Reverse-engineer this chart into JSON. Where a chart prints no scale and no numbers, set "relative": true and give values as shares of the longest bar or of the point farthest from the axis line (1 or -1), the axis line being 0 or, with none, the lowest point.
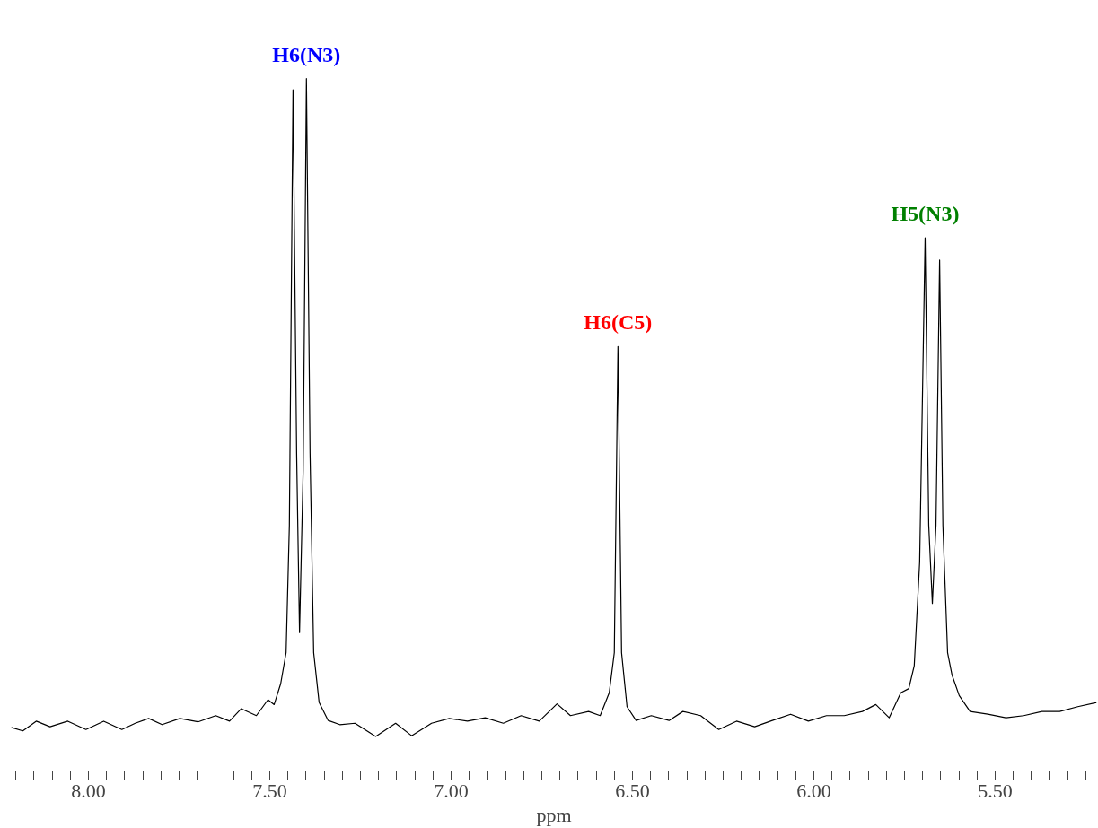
{
  "chart_data": {
    "type": "line",
    "relative": true,
    "xlabel": "ppm",
    "grid": false,
    "marker": "none",
    "line_style": "solid",
    "xlim": [
      8.213,
      5.22
    ],
    "xticks": [
      {
        "value": 8.2,
        "label": null
      },
      {
        "value": 8.15,
        "label": null
      },
      {
        "value": 8.1,
        "label": null
      },
      {
        "value": 8.05,
        "label": null
      },
      {
        "value": 8.0,
        "label": "8.00"
      },
      {
        "value": 7.95,
        "label": null
      },
      {
        "value": 7.9,
        "label": null
      },
      {
        "value": 7.85,
        "label": null
      },
      {
        "value": 7.8,
        "label": null
      },
      {
        "value": 7.75,
        "label": null
      },
      {
        "value": 7.7,
        "label": null
      },
      {
        "value": 7.65,
        "label": null
      },
      {
        "value": 7.6,
        "label": null
      },
      {
        "value": 7.55,
        "label": null
      },
      {
        "value": 7.5,
        "label": "7.50"
      },
      {
        "value": 7.45,
        "label": null
      },
      {
        "value": 7.4,
        "label": null
      },
      {
        "value": 7.35,
        "label": null
      },
      {
        "value": 7.3,
        "label": null
      },
      {
        "value": 7.25,
        "label": null
      },
      {
        "value": 7.2,
        "label": null
      },
      {
        "value": 7.15,
        "label": null
      },
      {
        "value": 7.1,
        "label": null
      },
      {
        "value": 7.05,
        "label": null
      },
      {
        "value": 7.0,
        "label": "7.00"
      },
      {
        "value": 6.95,
        "label": null
      },
      {
        "value": 6.9,
        "label": null
      },
      {
        "value": 6.85,
        "label": null
      },
      {
        "value": 6.8,
        "label": null
      },
      {
        "value": 6.75,
        "label": null
      },
      {
        "value": 6.7,
        "label": null
      },
      {
        "value": 6.65,
        "label": null
      },
      {
        "value": 6.6,
        "label": null
      },
      {
        "value": 6.55,
        "label": null
      },
      {
        "value": 6.5,
        "label": "6.50"
      },
      {
        "value": 6.45,
        "label": null
      },
      {
        "value": 6.4,
        "label": null
      },
      {
        "value": 6.35,
        "label": null
      },
      {
        "value": 6.3,
        "label": null
      },
      {
        "value": 6.25,
        "label": null
      },
      {
        "value": 6.2,
        "label": null
      },
      {
        "value": 6.15,
        "label": null
      },
      {
        "value": 6.1,
        "label": null
      },
      {
        "value": 6.05,
        "label": null
      },
      {
        "value": 6.0,
        "label": "6.00"
      },
      {
        "value": 5.95,
        "label": null
      },
      {
        "value": 5.9,
        "label": null
      },
      {
        "value": 5.85,
        "label": null
      },
      {
        "value": 5.8,
        "label": null
      },
      {
        "value": 5.75,
        "label": null
      },
      {
        "value": 5.7,
        "label": null
      },
      {
        "value": 5.65,
        "label": null
      },
      {
        "value": 5.6,
        "label": null
      },
      {
        "value": 5.55,
        "label": null
      },
      {
        "value": 5.5,
        "label": "5.50"
      },
      {
        "value": 5.45,
        "label": null
      },
      {
        "value": 5.4,
        "label": null
      },
      {
        "value": 5.35,
        "label": null
      },
      {
        "value": 5.3,
        "label": null
      },
      {
        "value": 5.25,
        "label": null
      }
    ],
    "series": [
      {
        "color": "#000000",
        "x": [
          8.213,
          8.181,
          8.144,
          8.106,
          8.057,
          8.007,
          7.958,
          7.908,
          7.871,
          7.834,
          7.797,
          7.748,
          7.698,
          7.649,
          7.611,
          7.579,
          7.537,
          7.505,
          7.488,
          7.47,
          7.455,
          7.446,
          7.436,
          7.426,
          7.418,
          7.408,
          7.399,
          7.389,
          7.379,
          7.364,
          7.339,
          7.307,
          7.265,
          7.208,
          7.153,
          7.109,
          7.054,
          7.005,
          6.955,
          6.906,
          6.856,
          6.807,
          6.757,
          6.708,
          6.671,
          6.621,
          6.589,
          6.564,
          6.55,
          6.54,
          6.53,
          6.515,
          6.49,
          6.448,
          6.399,
          6.361,
          6.312,
          6.262,
          6.213,
          6.163,
          6.114,
          6.064,
          6.015,
          5.965,
          5.916,
          5.866,
          5.829,
          5.792,
          5.76,
          5.738,
          5.723,
          5.708,
          5.693,
          5.683,
          5.673,
          5.663,
          5.653,
          5.644,
          5.631,
          5.619,
          5.599,
          5.569,
          5.52,
          5.47,
          5.421,
          5.371,
          5.322,
          5.272,
          5.22
        ],
        "values": [
          0.063,
          0.058,
          0.072,
          0.064,
          0.072,
          0.06,
          0.072,
          0.06,
          0.069,
          0.076,
          0.067,
          0.076,
          0.071,
          0.08,
          0.072,
          0.09,
          0.08,
          0.103,
          0.096,
          0.126,
          0.171,
          0.355,
          0.984,
          0.459,
          0.2,
          0.433,
          1.0,
          0.459,
          0.171,
          0.099,
          0.073,
          0.067,
          0.069,
          0.05,
          0.069,
          0.051,
          0.069,
          0.076,
          0.072,
          0.077,
          0.069,
          0.08,
          0.072,
          0.097,
          0.08,
          0.086,
          0.08,
          0.113,
          0.171,
          0.613,
          0.171,
          0.093,
          0.073,
          0.08,
          0.073,
          0.086,
          0.08,
          0.06,
          0.072,
          0.064,
          0.073,
          0.082,
          0.072,
          0.08,
          0.08,
          0.086,
          0.096,
          0.077,
          0.113,
          0.119,
          0.152,
          0.302,
          0.77,
          0.355,
          0.242,
          0.355,
          0.738,
          0.355,
          0.171,
          0.139,
          0.109,
          0.086,
          0.082,
          0.077,
          0.08,
          0.086,
          0.086,
          0.093,
          0.099
        ]
      }
    ],
    "annotations": [
      {
        "text": "H6(N3)",
        "x": 7.399,
        "y": 1.0
      },
      {
        "text": "H6(C5)",
        "x": 6.54,
        "y": 0.613
      },
      {
        "text": "H5(N3)",
        "x": 5.693,
        "y": 0.77
      }
    ]
  }
}
